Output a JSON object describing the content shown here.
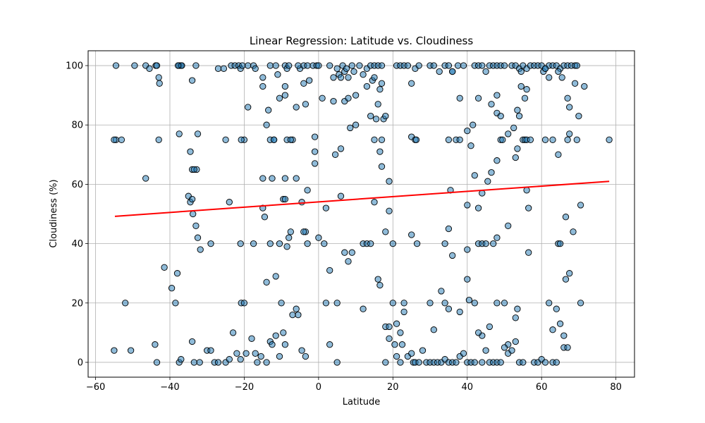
{
  "chart_data": {
    "type": "scatter",
    "title": "Linear Regression: Latitude vs. Cloudiness",
    "xlabel": "Latitude",
    "ylabel": "Cloudiness (%)",
    "xlim": [
      -62,
      85
    ],
    "ylim": [
      -5,
      105
    ],
    "x_ticks": [
      -60,
      -40,
      -20,
      0,
      20,
      40,
      60,
      80
    ],
    "y_ticks": [
      0,
      20,
      40,
      60,
      80,
      100
    ],
    "x_tick_labels": [
      "−60",
      "−40",
      "−20",
      "0",
      "20",
      "40",
      "60",
      "80"
    ],
    "y_tick_labels": [
      "0",
      "20",
      "40",
      "60",
      "80",
      "100"
    ],
    "grid": true,
    "colors": {
      "point_fill": "#1f77b4",
      "point_edge": "#000000",
      "regression_line": "#ff0000"
    },
    "regression": {
      "x": [
        -54.8,
        78.2
      ],
      "y": [
        49.2,
        61.0
      ]
    },
    "points": [
      [
        -54.5,
        100
      ],
      [
        -49.5,
        100
      ],
      [
        -46.5,
        100
      ],
      [
        -45.5,
        99
      ],
      [
        -43.8,
        100
      ],
      [
        -43.5,
        100
      ],
      [
        -43,
        96
      ],
      [
        -42.8,
        94
      ],
      [
        -37.5,
        100
      ],
      [
        -37,
        100
      ],
      [
        -36.8,
        100
      ],
      [
        -33,
        100
      ],
      [
        -27,
        99
      ],
      [
        -25.5,
        99
      ],
      [
        -23.5,
        100
      ],
      [
        -22.5,
        100
      ],
      [
        -21.5,
        100
      ],
      [
        -21,
        99
      ],
      [
        -20.5,
        100
      ],
      [
        -19,
        100
      ],
      [
        -17.5,
        100
      ],
      [
        -13,
        100
      ],
      [
        -11.5,
        100
      ],
      [
        -9,
        100
      ],
      [
        -8.5,
        99
      ],
      [
        -5,
        99
      ],
      [
        -4,
        100
      ],
      [
        -3,
        100
      ],
      [
        -1.5,
        100
      ],
      [
        -0.5,
        100
      ],
      [
        0,
        100
      ],
      [
        3,
        100
      ],
      [
        5,
        99
      ],
      [
        5.5,
        97
      ],
      [
        6,
        96
      ],
      [
        6.5,
        100
      ],
      [
        7,
        98
      ],
      [
        7.5,
        99
      ],
      [
        8,
        96
      ],
      [
        9,
        100
      ],
      [
        9.5,
        98
      ],
      [
        11,
        100
      ],
      [
        13,
        99
      ],
      [
        14,
        100
      ],
      [
        15,
        100
      ],
      [
        16,
        100
      ],
      [
        17,
        100
      ],
      [
        21,
        100
      ],
      [
        22,
        100
      ],
      [
        23,
        100
      ],
      [
        24,
        100
      ],
      [
        26,
        99
      ],
      [
        30,
        100
      ],
      [
        31,
        100
      ],
      [
        32.5,
        98
      ],
      [
        34,
        100
      ],
      [
        35,
        100
      ],
      [
        36,
        98
      ],
      [
        37.5,
        100
      ],
      [
        39,
        100
      ],
      [
        42,
        100
      ],
      [
        43,
        100
      ],
      [
        44,
        100
      ],
      [
        45,
        98
      ],
      [
        46,
        100
      ],
      [
        47,
        100
      ],
      [
        48,
        100
      ],
      [
        49,
        100
      ],
      [
        50,
        100
      ],
      [
        52,
        100
      ],
      [
        53,
        100
      ],
      [
        54,
        99
      ],
      [
        54.5,
        98
      ],
      [
        55,
        100
      ],
      [
        56,
        99
      ],
      [
        57,
        100
      ],
      [
        58,
        100
      ],
      [
        59,
        100
      ],
      [
        60,
        100
      ],
      [
        60.5,
        98
      ],
      [
        61,
        99
      ],
      [
        62,
        100
      ],
      [
        63,
        100
      ],
      [
        64,
        100
      ],
      [
        65,
        99
      ],
      [
        66,
        100
      ],
      [
        67,
        100
      ],
      [
        68,
        100
      ],
      [
        69,
        100
      ],
      [
        69.5,
        100
      ],
      [
        -54.5,
        75
      ],
      [
        -53,
        75
      ],
      [
        -43,
        75
      ],
      [
        -37.5,
        77
      ],
      [
        -32.5,
        77
      ],
      [
        -25,
        75
      ],
      [
        -20,
        75
      ],
      [
        -20.8,
        75
      ],
      [
        -13,
        75
      ],
      [
        -12,
        75
      ],
      [
        -8.5,
        75
      ],
      [
        -7,
        75
      ],
      [
        -1,
        76
      ],
      [
        10,
        80
      ],
      [
        15,
        75
      ],
      [
        17,
        75
      ],
      [
        25,
        76
      ],
      [
        26,
        75
      ],
      [
        26.3,
        75
      ],
      [
        35,
        75
      ],
      [
        37,
        75
      ],
      [
        38,
        75
      ],
      [
        41,
        73
      ],
      [
        49,
        75
      ],
      [
        51,
        77
      ],
      [
        52.5,
        79
      ],
      [
        53.5,
        72
      ],
      [
        55,
        75
      ],
      [
        55.5,
        75
      ],
      [
        56,
        75
      ],
      [
        57,
        75
      ],
      [
        61,
        75
      ],
      [
        63,
        75
      ],
      [
        67,
        75
      ],
      [
        67.5,
        77
      ],
      [
        69.5,
        75
      ],
      [
        78.2,
        75
      ],
      [
        -46.5,
        62
      ],
      [
        -34.5,
        71
      ],
      [
        -34,
        65
      ],
      [
        -32.8,
        65
      ],
      [
        -15,
        62
      ],
      [
        -12.5,
        62
      ],
      [
        -9,
        62
      ],
      [
        -6,
        62
      ],
      [
        -3,
        58
      ],
      [
        6,
        72
      ],
      [
        15.5,
        82
      ],
      [
        16.5,
        71
      ],
      [
        17,
        66
      ],
      [
        19,
        61
      ],
      [
        35.5,
        58
      ],
      [
        40,
        53
      ],
      [
        44,
        57
      ],
      [
        45.5,
        61
      ],
      [
        46.5,
        64
      ],
      [
        48,
        68
      ],
      [
        53,
        69
      ],
      [
        56,
        58
      ],
      [
        56.5,
        52
      ],
      [
        64.5,
        70
      ],
      [
        66.5,
        49
      ],
      [
        70.5,
        53
      ],
      [
        -35,
        56
      ],
      [
        -34.5,
        54
      ],
      [
        -34,
        55
      ],
      [
        -33.8,
        50
      ],
      [
        -33,
        46
      ],
      [
        -32.5,
        42
      ],
      [
        -31.8,
        38
      ],
      [
        -24,
        54
      ],
      [
        -15,
        52
      ],
      [
        -14.5,
        49
      ],
      [
        -13,
        40
      ],
      [
        -10.5,
        40
      ],
      [
        -9.5,
        55
      ],
      [
        -9,
        55
      ],
      [
        -8.5,
        39
      ],
      [
        -8,
        42
      ],
      [
        -7.5,
        44
      ],
      [
        -4.5,
        54
      ],
      [
        -3.5,
        44
      ],
      [
        -3,
        40
      ],
      [
        0,
        42
      ],
      [
        1.5,
        40
      ],
      [
        2,
        52
      ],
      [
        6,
        56
      ],
      [
        8,
        34
      ],
      [
        12,
        40
      ],
      [
        13,
        40
      ],
      [
        14,
        40
      ],
      [
        15,
        54
      ],
      [
        18,
        44
      ],
      [
        19,
        51
      ],
      [
        20,
        40
      ],
      [
        25,
        43
      ],
      [
        26.5,
        40
      ],
      [
        34,
        40
      ],
      [
        35,
        45
      ],
      [
        36,
        36
      ],
      [
        40,
        38
      ],
      [
        43,
        40
      ],
      [
        44,
        40
      ],
      [
        45,
        40
      ],
      [
        47,
        40
      ],
      [
        48,
        42
      ],
      [
        51,
        46
      ],
      [
        56.5,
        37
      ],
      [
        64.5,
        40
      ],
      [
        65,
        40
      ],
      [
        66.5,
        28
      ],
      [
        68.5,
        44
      ],
      [
        42,
        63
      ],
      [
        43,
        52
      ],
      [
        -52,
        20
      ],
      [
        -41.5,
        32
      ],
      [
        -39.5,
        25
      ],
      [
        -38.5,
        20
      ],
      [
        -38,
        30
      ],
      [
        -29,
        40
      ],
      [
        -21,
        40
      ],
      [
        -20.8,
        20
      ],
      [
        -20,
        20
      ],
      [
        -17.5,
        40
      ],
      [
        -14,
        27
      ],
      [
        -11.5,
        29
      ],
      [
        -10,
        20
      ],
      [
        -6,
        18
      ],
      [
        -5.5,
        16
      ],
      [
        -7,
        16
      ],
      [
        -4,
        44
      ],
      [
        2,
        20
      ],
      [
        3,
        31
      ],
      [
        5,
        20
      ],
      [
        7,
        37
      ],
      [
        9,
        37
      ],
      [
        12,
        18
      ],
      [
        16,
        28
      ],
      [
        16.5,
        26
      ],
      [
        18,
        12
      ],
      [
        19,
        12
      ],
      [
        20,
        20
      ],
      [
        20.5,
        6
      ],
      [
        21,
        13
      ],
      [
        22,
        10
      ],
      [
        23,
        20
      ],
      [
        23,
        17
      ],
      [
        30,
        20
      ],
      [
        31,
        11
      ],
      [
        33,
        24
      ],
      [
        34,
        20
      ],
      [
        35,
        18
      ],
      [
        38,
        17
      ],
      [
        40,
        28
      ],
      [
        40.5,
        21
      ],
      [
        42,
        20
      ],
      [
        44,
        9
      ],
      [
        46,
        12
      ],
      [
        48,
        20
      ],
      [
        50,
        20
      ],
      [
        51,
        6
      ],
      [
        53,
        15
      ],
      [
        53.5,
        18
      ],
      [
        62,
        20
      ],
      [
        63,
        11
      ],
      [
        64,
        18
      ],
      [
        66,
        9
      ],
      [
        67.5,
        30
      ],
      [
        70.5,
        20
      ],
      [
        -55,
        4
      ],
      [
        -50.5,
        4
      ],
      [
        -44,
        6
      ],
      [
        -43.5,
        0
      ],
      [
        -37.5,
        0
      ],
      [
        -37,
        1
      ],
      [
        -34,
        7
      ],
      [
        -33.5,
        0
      ],
      [
        -32,
        0
      ],
      [
        -30,
        4
      ],
      [
        -29,
        4
      ],
      [
        -28,
        0
      ],
      [
        -27,
        0
      ],
      [
        -25,
        0
      ],
      [
        -24,
        1
      ],
      [
        -23,
        10
      ],
      [
        -22,
        3
      ],
      [
        -21,
        1
      ],
      [
        -19.5,
        3
      ],
      [
        -18,
        8
      ],
      [
        -17,
        3
      ],
      [
        -16.5,
        0
      ],
      [
        -15.5,
        2
      ],
      [
        -14,
        0
      ],
      [
        -13,
        7
      ],
      [
        -12.5,
        6
      ],
      [
        -11.5,
        9
      ],
      [
        -10.5,
        2
      ],
      [
        -9.5,
        10
      ],
      [
        -9,
        6
      ],
      [
        -4.5,
        4
      ],
      [
        -3.5,
        2
      ],
      [
        3,
        6
      ],
      [
        5,
        0
      ],
      [
        18,
        0
      ],
      [
        19,
        8
      ],
      [
        21,
        2
      ],
      [
        22,
        0
      ],
      [
        22.5,
        6
      ],
      [
        24,
        2
      ],
      [
        25,
        3
      ],
      [
        25.5,
        0
      ],
      [
        26,
        0
      ],
      [
        27,
        0
      ],
      [
        28,
        4
      ],
      [
        29,
        0
      ],
      [
        30,
        0
      ],
      [
        31,
        0
      ],
      [
        32,
        0
      ],
      [
        33,
        0
      ],
      [
        34,
        1
      ],
      [
        35,
        0
      ],
      [
        36,
        0
      ],
      [
        37,
        0
      ],
      [
        38,
        2
      ],
      [
        39,
        3
      ],
      [
        40,
        0
      ],
      [
        41,
        0
      ],
      [
        42,
        0
      ],
      [
        43,
        10
      ],
      [
        44,
        0
      ],
      [
        45,
        4
      ],
      [
        46,
        0
      ],
      [
        47,
        0
      ],
      [
        48,
        0
      ],
      [
        49,
        0
      ],
      [
        50,
        5
      ],
      [
        51,
        3
      ],
      [
        52,
        4
      ],
      [
        53,
        7
      ],
      [
        54,
        0
      ],
      [
        55,
        0
      ],
      [
        58,
        0
      ],
      [
        59,
        0
      ],
      [
        60,
        1
      ],
      [
        61,
        0
      ],
      [
        63,
        0
      ],
      [
        64,
        0
      ],
      [
        65,
        13
      ],
      [
        66,
        5
      ],
      [
        67,
        5
      ],
      [
        -55,
        75
      ],
      [
        -37.8,
        100
      ],
      [
        -34,
        95
      ],
      [
        -33.5,
        65
      ],
      [
        -19,
        86
      ],
      [
        -17,
        99
      ],
      [
        -15,
        96
      ],
      [
        -15,
        93
      ],
      [
        -14,
        80
      ],
      [
        -13.5,
        85
      ],
      [
        -12,
        75
      ],
      [
        -11,
        97
      ],
      [
        -10.5,
        89
      ],
      [
        -9,
        90
      ],
      [
        -9,
        93
      ],
      [
        -8,
        100
      ],
      [
        -7.5,
        75
      ],
      [
        -6,
        86
      ],
      [
        -5.5,
        100
      ],
      [
        -4,
        94
      ],
      [
        -3.5,
        87
      ],
      [
        -2.5,
        95
      ],
      [
        -1,
        71
      ],
      [
        -1,
        67
      ],
      [
        1,
        89
      ],
      [
        4,
        96
      ],
      [
        4,
        88
      ],
      [
        4.5,
        70
      ],
      [
        7,
        88
      ],
      [
        8,
        89
      ],
      [
        8.5,
        79
      ],
      [
        10,
        90
      ],
      [
        12,
        97
      ],
      [
        13,
        93
      ],
      [
        14,
        83
      ],
      [
        14.5,
        95
      ],
      [
        15,
        96
      ],
      [
        16,
        87
      ],
      [
        16.5,
        92
      ],
      [
        17,
        94
      ],
      [
        17.5,
        82
      ],
      [
        18,
        83
      ],
      [
        25,
        94
      ],
      [
        27,
        100
      ],
      [
        36,
        98
      ],
      [
        38,
        89
      ],
      [
        40,
        78
      ],
      [
        41.5,
        80
      ],
      [
        43,
        89
      ],
      [
        46.5,
        87
      ],
      [
        48,
        90
      ],
      [
        48,
        84
      ],
      [
        49,
        83
      ],
      [
        49.5,
        75
      ],
      [
        53.5,
        85
      ],
      [
        54,
        83
      ],
      [
        54.5,
        93
      ],
      [
        55.5,
        89
      ],
      [
        56,
        92
      ],
      [
        62,
        96
      ],
      [
        64.5,
        98
      ],
      [
        65.5,
        96
      ],
      [
        67,
        89
      ],
      [
        67.5,
        86
      ],
      [
        69,
        94
      ],
      [
        70,
        83
      ],
      [
        71.5,
        93
      ],
      [
        61,
        99
      ]
    ]
  }
}
